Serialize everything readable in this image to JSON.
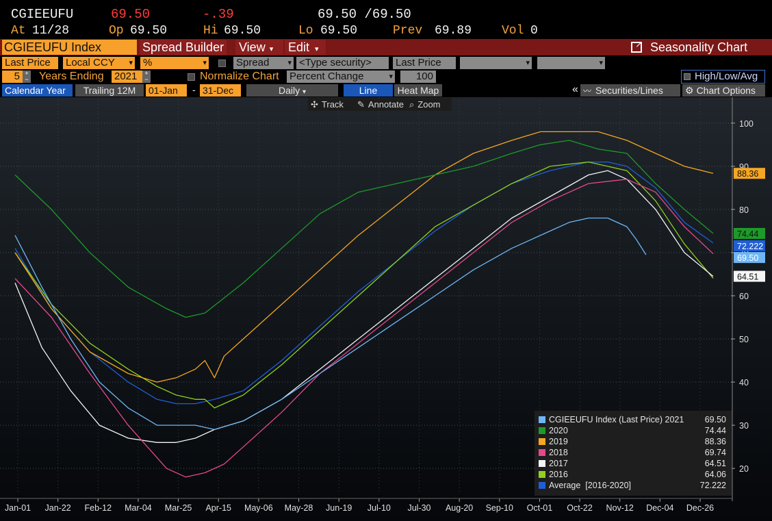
{
  "header": {
    "ticker": "CGIEEUFU",
    "last": "69.50",
    "change": "-.39",
    "bidask": "69.50 /69.50",
    "at_label": "At",
    "date": "11/28",
    "op_label": "Op",
    "op": "69.50",
    "hi_label": "Hi",
    "hi": "69.50",
    "lo_label": "Lo",
    "lo": "69.50",
    "prev_label": "Prev",
    "prev": "69.89",
    "vol_label": "Vol",
    "vol": "0"
  },
  "menubar": {
    "security": "CGIEEUFU Index",
    "spread_builder": "Spread Builder",
    "view": "View",
    "edit": "Edit",
    "seasonality": "Seasonality Chart"
  },
  "controls": {
    "field": "Last Price",
    "currency": "Local CCY",
    "unit": "%",
    "spread": "Spread",
    "type_security": "<Type security>",
    "last_price2": "Last Price",
    "years": "5",
    "years_ending_label": "Years Ending",
    "year_end": "2021",
    "normalize": "Normalize Chart",
    "percent_change": "Percent Change",
    "base": "100",
    "hla": "High/Low/Avg",
    "calendar_year": "Calendar Year",
    "trailing": "Trailing 12M",
    "from": "01-Jan",
    "dash": "-",
    "to": "31-Dec",
    "freq": "Daily",
    "line": "Line",
    "heat_map": "Heat Map",
    "collapse": "«",
    "securities_lines": "Securities/Lines",
    "chart_options": "Chart Options",
    "track": "Track",
    "annotate": "Annotate",
    "zoom": "Zoom"
  },
  "chart_data": {
    "type": "line",
    "x_ticks": [
      "Jan-01",
      "Jan-22",
      "Feb-12",
      "Mar-04",
      "Mar-25",
      "Apr-15",
      "May-06",
      "May-28",
      "Jun-19",
      "Jul-10",
      "Jul-30",
      "Aug-20",
      "Sep-10",
      "Oct-01",
      "Oct-22",
      "Nov-12",
      "Dec-04",
      "Dec-26"
    ],
    "y_ticks": [
      20,
      30,
      40,
      50,
      60,
      70,
      80,
      90,
      100
    ],
    "ylim": [
      14,
      106
    ],
    "x_unit": "day of year",
    "xlim": [
      1,
      365
    ],
    "grid": "dotted",
    "legend_position": "bottom-right",
    "series": [
      {
        "name": "CGIEEUFU Index (Last Price) 2021",
        "value_label": "69.50",
        "color": "#6fb6f5",
        "x": [
          1,
          15,
          30,
          45,
          60,
          75,
          85,
          95,
          105,
          120,
          140,
          160,
          180,
          200,
          220,
          240,
          260,
          280,
          290,
          300,
          310,
          320,
          325,
          330
        ],
        "y": [
          74,
          62,
          50,
          40,
          34,
          30,
          30,
          30,
          29,
          31,
          36,
          42,
          48,
          54,
          60,
          66,
          71,
          75,
          77,
          78,
          78,
          76,
          73,
          69.5
        ]
      },
      {
        "name": "2020",
        "value_label": "74.44",
        "color": "#1d9a2a",
        "x": [
          1,
          20,
          40,
          60,
          80,
          90,
          100,
          120,
          140,
          160,
          180,
          200,
          220,
          240,
          260,
          275,
          290,
          305,
          320,
          335,
          350,
          365
        ],
        "y": [
          88,
          80,
          70,
          62,
          57,
          55,
          56,
          63,
          71,
          79,
          84,
          86,
          88,
          90,
          93,
          95,
          96,
          94,
          93,
          86,
          80,
          74.44
        ]
      },
      {
        "name": "2019",
        "value_label": "88.36",
        "color": "#f5a623",
        "x": [
          1,
          20,
          40,
          60,
          75,
          85,
          95,
          100,
          105,
          110,
          120,
          140,
          160,
          180,
          200,
          220,
          240,
          260,
          275,
          290,
          305,
          320,
          335,
          350,
          365
        ],
        "y": [
          70,
          57,
          47,
          42,
          40,
          41,
          43,
          45,
          41,
          46,
          50,
          58,
          66,
          74,
          81,
          88,
          93,
          96,
          98,
          98,
          98,
          96,
          93,
          90,
          88.36
        ]
      },
      {
        "name": "2018",
        "value_label": "69.74",
        "color": "#e6488f",
        "x": [
          1,
          20,
          40,
          60,
          80,
          90,
          100,
          110,
          120,
          140,
          160,
          180,
          200,
          220,
          240,
          260,
          280,
          300,
          320,
          335,
          350,
          365
        ],
        "y": [
          64,
          55,
          42,
          30,
          20,
          18,
          19,
          21,
          25,
          33,
          42,
          49,
          56,
          63,
          70,
          77,
          82,
          86,
          87,
          84,
          76,
          69.74
        ]
      },
      {
        "name": "2017",
        "value_label": "64.51",
        "color": "#f5f5f5",
        "x": [
          1,
          15,
          30,
          45,
          60,
          75,
          85,
          95,
          105,
          120,
          140,
          160,
          180,
          200,
          220,
          240,
          260,
          280,
          300,
          310,
          320,
          335,
          350,
          365
        ],
        "y": [
          63,
          48,
          38,
          30,
          27,
          26,
          26,
          27,
          29,
          31,
          36,
          43,
          50,
          57,
          64,
          71,
          78,
          83,
          88,
          89,
          87,
          80,
          70,
          64.51
        ]
      },
      {
        "name": "2016",
        "value_label": "64.06",
        "color": "#8fd21c",
        "x": [
          1,
          20,
          40,
          60,
          75,
          85,
          95,
          100,
          105,
          120,
          140,
          160,
          180,
          200,
          220,
          240,
          260,
          280,
          300,
          320,
          335,
          350,
          365
        ],
        "y": [
          70,
          58,
          49,
          43,
          39,
          37,
          36,
          36,
          34,
          37,
          44,
          52,
          60,
          68,
          76,
          81,
          86,
          90,
          91,
          89,
          82,
          72,
          64.06
        ]
      },
      {
        "name": "Average  [2016-2020]",
        "value_label": "72.222",
        "color": "#1f5fd6",
        "x": [
          1,
          20,
          40,
          60,
          75,
          85,
          95,
          105,
          120,
          140,
          160,
          180,
          200,
          220,
          240,
          260,
          280,
          300,
          310,
          320,
          335,
          350,
          365
        ],
        "y": [
          71,
          57,
          47,
          40,
          36,
          35,
          35,
          36,
          38,
          45,
          53,
          61,
          68,
          75,
          81,
          86,
          89,
          91,
          91,
          90,
          85,
          77,
          72.222
        ]
      }
    ],
    "end_labels": [
      "88.36",
      "74.44",
      "72.222",
      "69.50",
      "64.51"
    ]
  }
}
